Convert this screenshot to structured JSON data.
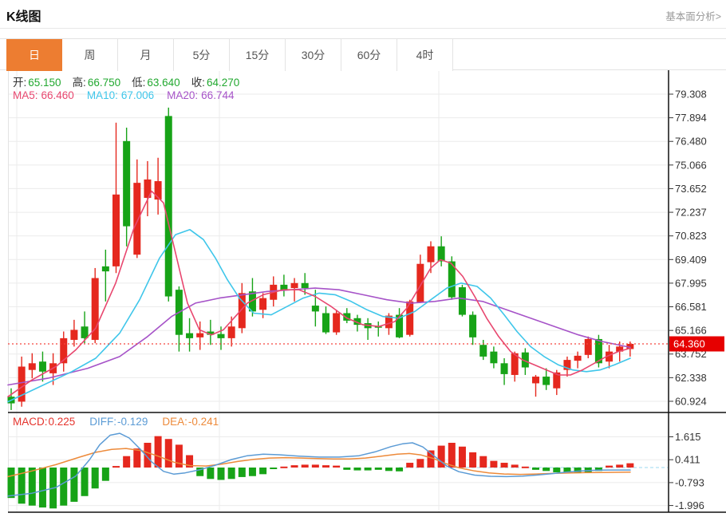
{
  "header": {
    "title": "K线图",
    "link": "基本面分析>"
  },
  "tabs": {
    "items": [
      "日",
      "周",
      "月",
      "5分",
      "15分",
      "30分",
      "60分",
      "4时"
    ],
    "selected": "日",
    "selected_color": "#ed7d31"
  },
  "legend": {
    "ohlc": [
      {
        "label": "开:",
        "value": "65.150"
      },
      {
        "label": "高:",
        "value": "66.750"
      },
      {
        "label": "低:",
        "value": "63.640"
      },
      {
        "label": "收:",
        "value": "64.270"
      }
    ],
    "ma": [
      {
        "label": "MA5:",
        "value": "66.460",
        "color": "#e8476f"
      },
      {
        "label": "MA10:",
        "value": "67.006",
        "color": "#3fc6ea"
      },
      {
        "label": "MA20:",
        "value": "66.744",
        "color": "#a653c8"
      }
    ],
    "macd": [
      {
        "label": "MACD:",
        "value": "0.225",
        "color": "#e5332c"
      },
      {
        "label": "DIFF:",
        "value": "-0.129",
        "color": "#5b9bd5"
      },
      {
        "label": "DEA:",
        "value": "-0.241",
        "color": "#ed8a3a"
      }
    ]
  },
  "chart_data": {
    "type": "candlestick",
    "title": "K线图",
    "panels": [
      "price",
      "macd"
    ],
    "price_axis_labels": [
      "79.308",
      "77.894",
      "76.480",
      "75.066",
      "73.652",
      "72.237",
      "70.823",
      "69.409",
      "67.995",
      "66.581",
      "65.166",
      "63.752",
      "62.338",
      "60.924"
    ],
    "macd_axis_labels": [
      "1.615",
      "0.411",
      "-0.793",
      "-1.996"
    ],
    "current_price": "64.360",
    "current_price_value": 64.36,
    "candles_ohlc": [
      [
        61.2,
        61.7,
        60.4,
        60.8
      ],
      [
        60.9,
        63.6,
        60.6,
        63.0
      ],
      [
        62.8,
        63.8,
        62.3,
        63.2
      ],
      [
        63.3,
        63.9,
        62.1,
        62.7
      ],
      [
        62.6,
        63.8,
        61.9,
        63.2
      ],
      [
        63.2,
        65.1,
        62.7,
        64.7
      ],
      [
        64.6,
        65.8,
        64.2,
        65.2
      ],
      [
        65.4,
        66.3,
        64.4,
        64.7
      ],
      [
        64.6,
        68.9,
        64.4,
        68.3
      ],
      [
        69.0,
        70.0,
        66.9,
        68.7
      ],
      [
        69.0,
        77.6,
        68.6,
        73.3
      ],
      [
        76.5,
        77.3,
        70.2,
        71.4
      ],
      [
        69.7,
        75.4,
        69.5,
        74.0
      ],
      [
        73.1,
        75.3,
        72.0,
        74.2
      ],
      [
        73.0,
        75.5,
        72.1,
        74.1
      ],
      [
        78.0,
        78.5,
        66.9,
        67.2
      ],
      [
        67.6,
        67.8,
        63.9,
        64.9
      ],
      [
        65.0,
        65.9,
        63.9,
        64.7
      ],
      [
        64.75,
        65.7,
        64.0,
        65.0
      ],
      [
        65.1,
        65.8,
        64.3,
        64.9
      ],
      [
        64.95,
        65.4,
        64.0,
        64.7
      ],
      [
        64.7,
        66.0,
        64.2,
        65.4
      ],
      [
        65.3,
        68.0,
        65.0,
        67.4
      ],
      [
        67.5,
        68.3,
        66.0,
        66.3
      ],
      [
        66.4,
        67.4,
        65.9,
        67.1
      ],
      [
        67.0,
        68.4,
        66.6,
        67.9
      ],
      [
        67.9,
        68.5,
        67.2,
        67.6
      ],
      [
        67.7,
        68.3,
        66.9,
        68.0
      ],
      [
        68.0,
        68.6,
        67.3,
        67.7
      ],
      [
        66.65,
        67.6,
        65.4,
        66.3
      ],
      [
        66.2,
        66.6,
        64.95,
        65.05
      ],
      [
        65.05,
        66.4,
        64.9,
        66.2
      ],
      [
        66.2,
        66.5,
        65.6,
        65.75
      ],
      [
        65.9,
        66.1,
        65.1,
        65.5
      ],
      [
        65.6,
        65.9,
        64.6,
        65.3
      ],
      [
        65.4,
        65.7,
        64.8,
        65.35
      ],
      [
        65.3,
        66.2,
        64.9,
        66.05
      ],
      [
        66.1,
        66.5,
        64.7,
        64.75
      ],
      [
        64.9,
        67.0,
        64.8,
        66.9
      ],
      [
        66.85,
        69.7,
        66.8,
        69.15
      ],
      [
        69.25,
        70.5,
        68.6,
        70.2
      ],
      [
        70.2,
        70.8,
        69.0,
        69.3
      ],
      [
        69.3,
        69.6,
        67.0,
        67.15
      ],
      [
        67.75,
        67.9,
        66.0,
        66.1
      ],
      [
        66.1,
        66.3,
        64.3,
        64.75
      ],
      [
        64.3,
        64.6,
        63.4,
        63.6
      ],
      [
        63.9,
        64.2,
        62.9,
        63.2
      ],
      [
        63.2,
        63.5,
        61.9,
        62.55
      ],
      [
        62.5,
        63.9,
        62.1,
        63.8
      ],
      [
        63.85,
        64.1,
        62.5,
        62.95
      ],
      [
        62.0,
        62.5,
        61.2,
        62.4
      ],
      [
        62.4,
        62.9,
        61.6,
        61.9
      ],
      [
        61.7,
        62.8,
        61.3,
        62.65
      ],
      [
        62.8,
        63.6,
        62.4,
        63.4
      ],
      [
        63.35,
        63.9,
        62.9,
        63.65
      ],
      [
        63.7,
        64.8,
        63.5,
        64.65
      ],
      [
        64.65,
        64.9,
        62.95,
        63.2
      ],
      [
        63.3,
        64.3,
        62.9,
        63.9
      ],
      [
        63.9,
        64.5,
        63.3,
        64.2
      ],
      [
        64.05,
        64.5,
        63.6,
        64.36
      ]
    ],
    "ma5": [
      [
        10,
        61.2
      ],
      [
        40,
        62.2
      ],
      [
        70,
        63.0
      ],
      [
        95,
        64.0
      ],
      [
        120,
        65.3
      ],
      [
        145,
        68.0
      ],
      [
        168,
        71.3
      ],
      [
        190,
        73.5
      ],
      [
        205,
        72.8
      ],
      [
        220,
        69.8
      ],
      [
        235,
        66.8
      ],
      [
        250,
        65.2
      ],
      [
        265,
        64.9
      ],
      [
        280,
        65.2
      ],
      [
        295,
        66.0
      ],
      [
        310,
        66.8
      ],
      [
        330,
        67.3
      ],
      [
        355,
        67.6
      ],
      [
        375,
        67.6
      ],
      [
        395,
        67.2
      ],
      [
        415,
        66.6
      ],
      [
        435,
        65.9
      ],
      [
        455,
        65.5
      ],
      [
        475,
        65.4
      ],
      [
        495,
        65.7
      ],
      [
        510,
        66.5
      ],
      [
        525,
        67.7
      ],
      [
        540,
        68.9
      ],
      [
        552,
        69.4
      ],
      [
        565,
        69.2
      ],
      [
        580,
        68.4
      ],
      [
        595,
        67.2
      ],
      [
        610,
        65.9
      ],
      [
        625,
        64.8
      ],
      [
        640,
        63.9
      ],
      [
        655,
        63.4
      ],
      [
        670,
        63.1
      ],
      [
        685,
        62.8
      ],
      [
        700,
        62.5
      ],
      [
        715,
        62.5
      ],
      [
        730,
        62.8
      ],
      [
        745,
        63.2
      ],
      [
        760,
        63.6
      ],
      [
        775,
        63.9
      ],
      [
        790,
        64.1
      ]
    ],
    "ma10": [
      [
        10,
        60.9
      ],
      [
        50,
        61.8
      ],
      [
        90,
        62.7
      ],
      [
        120,
        63.5
      ],
      [
        150,
        65.0
      ],
      [
        175,
        67.0
      ],
      [
        200,
        69.5
      ],
      [
        220,
        70.9
      ],
      [
        238,
        71.2
      ],
      [
        255,
        70.6
      ],
      [
        270,
        69.5
      ],
      [
        285,
        68.2
      ],
      [
        300,
        67.1
      ],
      [
        318,
        66.2
      ],
      [
        340,
        66.1
      ],
      [
        360,
        66.6
      ],
      [
        380,
        67.1
      ],
      [
        400,
        67.4
      ],
      [
        420,
        67.3
      ],
      [
        440,
        66.9
      ],
      [
        460,
        66.4
      ],
      [
        480,
        66.0
      ],
      [
        500,
        65.9
      ],
      [
        520,
        66.3
      ],
      [
        540,
        67.0
      ],
      [
        560,
        67.7
      ],
      [
        578,
        68.0
      ],
      [
        598,
        67.8
      ],
      [
        615,
        67.1
      ],
      [
        632,
        66.1
      ],
      [
        648,
        65.1
      ],
      [
        665,
        64.2
      ],
      [
        682,
        63.6
      ],
      [
        700,
        63.1
      ],
      [
        718,
        62.8
      ],
      [
        735,
        62.7
      ],
      [
        752,
        62.8
      ],
      [
        770,
        63.1
      ],
      [
        790,
        63.5
      ]
    ],
    "ma20": [
      [
        10,
        61.9
      ],
      [
        60,
        62.3
      ],
      [
        110,
        62.9
      ],
      [
        150,
        63.6
      ],
      [
        185,
        64.8
      ],
      [
        215,
        66.0
      ],
      [
        245,
        66.8
      ],
      [
        275,
        67.1
      ],
      [
        305,
        67.3
      ],
      [
        335,
        67.5
      ],
      [
        365,
        67.6
      ],
      [
        395,
        67.7
      ],
      [
        425,
        67.6
      ],
      [
        455,
        67.3
      ],
      [
        485,
        67.0
      ],
      [
        515,
        66.8
      ],
      [
        545,
        66.9
      ],
      [
        575,
        67.1
      ],
      [
        605,
        66.9
      ],
      [
        635,
        66.4
      ],
      [
        665,
        65.9
      ],
      [
        695,
        65.4
      ],
      [
        725,
        64.9
      ],
      [
        755,
        64.5
      ],
      [
        790,
        64.15
      ]
    ],
    "macd_histogram": [
      -1.6,
      -1.9,
      -2.0,
      -2.1,
      -2.15,
      -2.0,
      -1.8,
      -1.5,
      -1.1,
      -0.7,
      0.08,
      0.6,
      1.0,
      1.3,
      1.65,
      1.5,
      1.2,
      0.65,
      -0.45,
      -0.6,
      -0.65,
      -0.6,
      -0.5,
      -0.45,
      -0.35,
      -0.05,
      0.05,
      0.12,
      0.15,
      0.15,
      0.12,
      0.1,
      -0.12,
      -0.15,
      -0.15,
      -0.12,
      -0.18,
      -0.2,
      0.25,
      0.45,
      0.9,
      1.15,
      1.3,
      1.1,
      0.8,
      0.6,
      0.35,
      0.25,
      0.15,
      0.05,
      -0.12,
      -0.18,
      -0.25,
      -0.3,
      -0.3,
      -0.25,
      -0.18,
      0.1,
      0.15,
      0.225
    ],
    "diff_line": [
      [
        10,
        -1.5
      ],
      [
        40,
        -1.35
      ],
      [
        70,
        -1.05
      ],
      [
        95,
        -0.45
      ],
      [
        112,
        0.4
      ],
      [
        125,
        1.2
      ],
      [
        138,
        1.7
      ],
      [
        150,
        1.8
      ],
      [
        162,
        1.55
      ],
      [
        175,
        1.0
      ],
      [
        190,
        0.3
      ],
      [
        205,
        -0.2
      ],
      [
        218,
        -0.35
      ],
      [
        232,
        -0.28
      ],
      [
        250,
        -0.12
      ],
      [
        270,
        0.12
      ],
      [
        290,
        0.42
      ],
      [
        310,
        0.62
      ],
      [
        330,
        0.7
      ],
      [
        350,
        0.67
      ],
      [
        375,
        0.6
      ],
      [
        400,
        0.55
      ],
      [
        425,
        0.55
      ],
      [
        450,
        0.62
      ],
      [
        470,
        0.82
      ],
      [
        490,
        1.1
      ],
      [
        505,
        1.25
      ],
      [
        517,
        1.3
      ],
      [
        530,
        1.08
      ],
      [
        545,
        0.58
      ],
      [
        560,
        0.08
      ],
      [
        575,
        -0.22
      ],
      [
        595,
        -0.4
      ],
      [
        615,
        -0.46
      ],
      [
        635,
        -0.48
      ],
      [
        655,
        -0.45
      ],
      [
        672,
        -0.4
      ],
      [
        690,
        -0.33
      ],
      [
        710,
        -0.24
      ],
      [
        730,
        -0.17
      ],
      [
        750,
        -0.14
      ],
      [
        770,
        -0.13
      ],
      [
        790,
        -0.129
      ]
    ],
    "dea_line": [
      [
        10,
        -0.48
      ],
      [
        40,
        -0.18
      ],
      [
        70,
        0.15
      ],
      [
        100,
        0.55
      ],
      [
        120,
        0.8
      ],
      [
        140,
        0.95
      ],
      [
        158,
        1.0
      ],
      [
        178,
        0.88
      ],
      [
        198,
        0.6
      ],
      [
        218,
        0.28
      ],
      [
        238,
        0.1
      ],
      [
        258,
        0.08
      ],
      [
        278,
        0.18
      ],
      [
        298,
        0.32
      ],
      [
        318,
        0.43
      ],
      [
        338,
        0.5
      ],
      [
        358,
        0.52
      ],
      [
        378,
        0.5
      ],
      [
        398,
        0.47
      ],
      [
        418,
        0.45
      ],
      [
        438,
        0.45
      ],
      [
        458,
        0.5
      ],
      [
        478,
        0.6
      ],
      [
        498,
        0.7
      ],
      [
        513,
        0.74
      ],
      [
        528,
        0.66
      ],
      [
        543,
        0.48
      ],
      [
        558,
        0.22
      ],
      [
        576,
        -0.02
      ],
      [
        595,
        -0.18
      ],
      [
        613,
        -0.28
      ],
      [
        632,
        -0.34
      ],
      [
        652,
        -0.36
      ],
      [
        672,
        -0.34
      ],
      [
        692,
        -0.31
      ],
      [
        712,
        -0.29
      ],
      [
        732,
        -0.27
      ],
      [
        752,
        -0.26
      ],
      [
        770,
        -0.25
      ],
      [
        790,
        -0.241
      ]
    ],
    "colors": {
      "up": "#e5281e",
      "down": "#17a317",
      "ma5": "#e8476f",
      "ma10": "#3fc6ea",
      "ma20": "#a653c8",
      "diff": "#5b9bd5",
      "dea": "#ed8a3a",
      "grid": "#ebebeb",
      "axis_line": "#111111",
      "axis_text": "#333333",
      "price_line": "#f5453d",
      "badge_bg": "#e60000",
      "badge_text": "#ffffff",
      "zero_dash": "#9bd9f0"
    }
  }
}
